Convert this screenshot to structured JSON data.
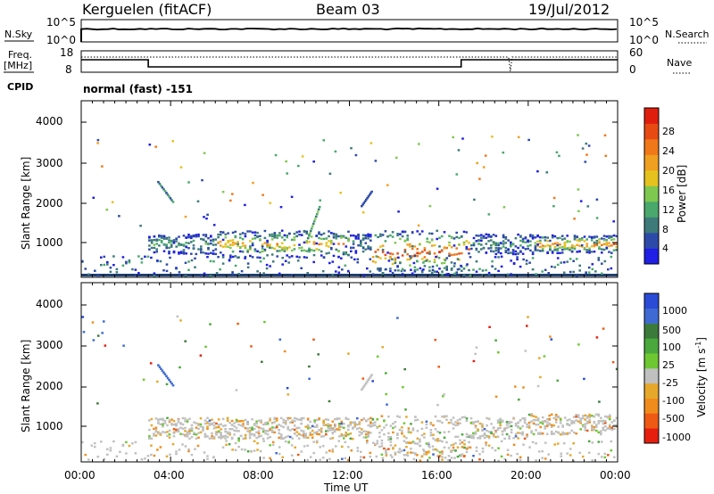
{
  "header": {
    "left": "Kerguelen (fitACF)",
    "center": "Beam 03",
    "right": "19/Jul/2012"
  },
  "status_panels": {
    "nsky_label": "N.Sky",
    "nsky_ticks": [
      "10^5",
      "10^0"
    ],
    "nsearch_label": "N.Search",
    "nsearch_ticks": [
      "10^5",
      "10^0"
    ],
    "freq_label": "Freq.",
    "freq_unit": "[MHz]",
    "freq_ticks": [
      "18",
      "8"
    ],
    "nave_label": "Nave",
    "nave_ticks": [
      "60",
      "0"
    ],
    "cpid_label": "CPID",
    "cpid_value": "normal (fast) -151"
  },
  "chart_data": [
    {
      "type": "heatmap",
      "panel": "power",
      "title": "",
      "xlabel": "",
      "ylabel": "Slant Range [km]",
      "ylim": [
        200,
        4600
      ],
      "yticks": [
        "1000",
        "2000",
        "3000",
        "4000"
      ],
      "colorbar": {
        "label": "Power [dB]",
        "ticks": [
          "4",
          "8",
          "12",
          "16",
          "20",
          "24",
          "28"
        ],
        "colors": [
          "#1f1fe6",
          "#2d4aa8",
          "#3e7a7a",
          "#4aa86c",
          "#7ec850",
          "#e6c21f",
          "#f0a020",
          "#f07818",
          "#e84a14",
          "#e01e0e"
        ]
      }
    },
    {
      "type": "heatmap",
      "panel": "velocity",
      "title": "",
      "xlabel": "Time UT",
      "ylabel": "Slant Range [km]",
      "ylim": [
        200,
        4600
      ],
      "yticks": [
        "1000",
        "2000",
        "3000",
        "4000"
      ],
      "xticks": [
        "00:00",
        "04:00",
        "08:00",
        "12:00",
        "16:00",
        "20:00",
        "00:00"
      ],
      "colorbar": {
        "label": "Velocity [m s",
        "label_sup": "-1",
        "label_end": "]",
        "ticks": [
          "1000",
          "500",
          "100",
          "25",
          "-25",
          "-100",
          "-500",
          "-1000"
        ],
        "colors": [
          "#2a4bd6",
          "#3f6ad4",
          "#3c7a3c",
          "#4aa83c",
          "#6ec832",
          "#c0c0c0",
          "#e6a82a",
          "#f08c1e",
          "#ee5a14",
          "#e61e0e"
        ]
      }
    }
  ]
}
